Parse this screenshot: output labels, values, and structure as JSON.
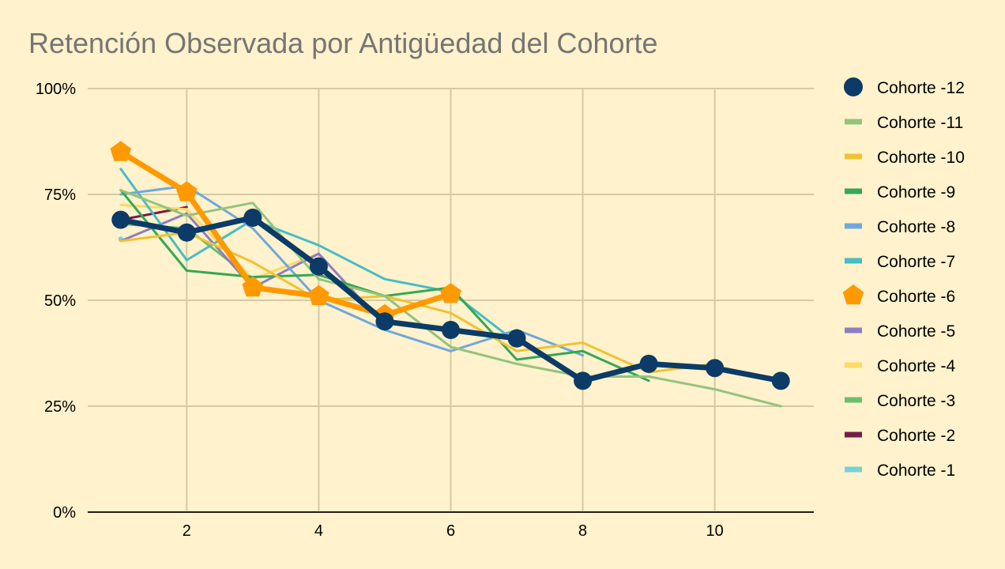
{
  "chart_data": {
    "type": "line",
    "title": "Retención Observada por Antigüedad del Cohorte",
    "xlabel": "",
    "ylabel": "",
    "xlim": [
      0.5,
      11.5
    ],
    "ylim": [
      0,
      100
    ],
    "x_ticks": [
      2,
      4,
      6,
      8,
      10
    ],
    "x_tick_labels": [
      "2",
      "4",
      "6",
      "8",
      "10"
    ],
    "y_ticks": [
      0,
      25,
      50,
      75,
      100
    ],
    "y_tick_labels": [
      "0%",
      "25%",
      "50%",
      "75%",
      "100%"
    ],
    "grid": true,
    "legend_position": "right",
    "series": [
      {
        "name": "Cohorte -12",
        "color": "#0b3b66",
        "marker": "circle",
        "highlight": true,
        "x": [
          1,
          2,
          3,
          4,
          5,
          6,
          7,
          8,
          9,
          10,
          11
        ],
        "y": [
          69,
          66,
          69.5,
          58,
          45,
          43,
          41,
          31,
          35,
          34,
          31
        ]
      },
      {
        "name": "Cohorte -11",
        "color": "#93c47d",
        "x": [
          1,
          2,
          3,
          4,
          5,
          6,
          7,
          8,
          9,
          10,
          11
        ],
        "y": [
          76,
          70,
          73,
          55,
          51,
          39,
          35,
          32,
          32,
          29,
          25
        ]
      },
      {
        "name": "Cohorte -10",
        "color": "#f1c232",
        "x": [
          1,
          2,
          3,
          4,
          5,
          6,
          7,
          8,
          9,
          10
        ],
        "y": [
          64,
          66,
          59,
          50,
          51,
          47,
          38,
          40,
          33,
          35
        ]
      },
      {
        "name": "Cohorte -9",
        "color": "#34a853",
        "x": [
          1,
          2,
          3,
          4,
          5,
          6,
          7,
          8,
          9
        ],
        "y": [
          76,
          57,
          55.5,
          56,
          51,
          53,
          36,
          38,
          31
        ]
      },
      {
        "name": "Cohorte -8",
        "color": "#6fa8dc",
        "x": [
          1,
          2,
          3,
          4,
          5,
          6,
          7,
          8
        ],
        "y": [
          75,
          77,
          67,
          50,
          43,
          38,
          43,
          37
        ]
      },
      {
        "name": "Cohorte -7",
        "color": "#46bdc6",
        "x": [
          1,
          2,
          3,
          4,
          5,
          6,
          7
        ],
        "y": [
          81,
          59.5,
          69,
          63,
          55,
          52,
          40
        ]
      },
      {
        "name": "Cohorte -6",
        "color": "#ff9900",
        "marker": "pentagon",
        "highlight": true,
        "x": [
          1,
          2,
          3,
          4,
          5,
          6
        ],
        "y": [
          85,
          75.5,
          53,
          51,
          46.5,
          51.5
        ]
      },
      {
        "name": "Cohorte -5",
        "color": "#8e7cc3",
        "x": [
          1,
          2,
          3,
          4,
          5
        ],
        "y": [
          64,
          70.5,
          53,
          61,
          44
        ]
      },
      {
        "name": "Cohorte -4",
        "color": "#ffd966",
        "x": [
          1,
          2,
          3,
          4
        ],
        "y": [
          72.5,
          71.5,
          55,
          61
        ]
      },
      {
        "name": "Cohorte -3",
        "color": "#6abf69",
        "x": [
          1,
          2,
          3
        ],
        "y": [
          68,
          67,
          55
        ]
      },
      {
        "name": "Cohorte -2",
        "color": "#741b47",
        "x": [
          1,
          2
        ],
        "y": [
          69,
          72
        ]
      },
      {
        "name": "Cohorte -1",
        "color": "#76d1d8",
        "x": [
          1
        ],
        "y": [
          64.5
        ]
      }
    ]
  }
}
